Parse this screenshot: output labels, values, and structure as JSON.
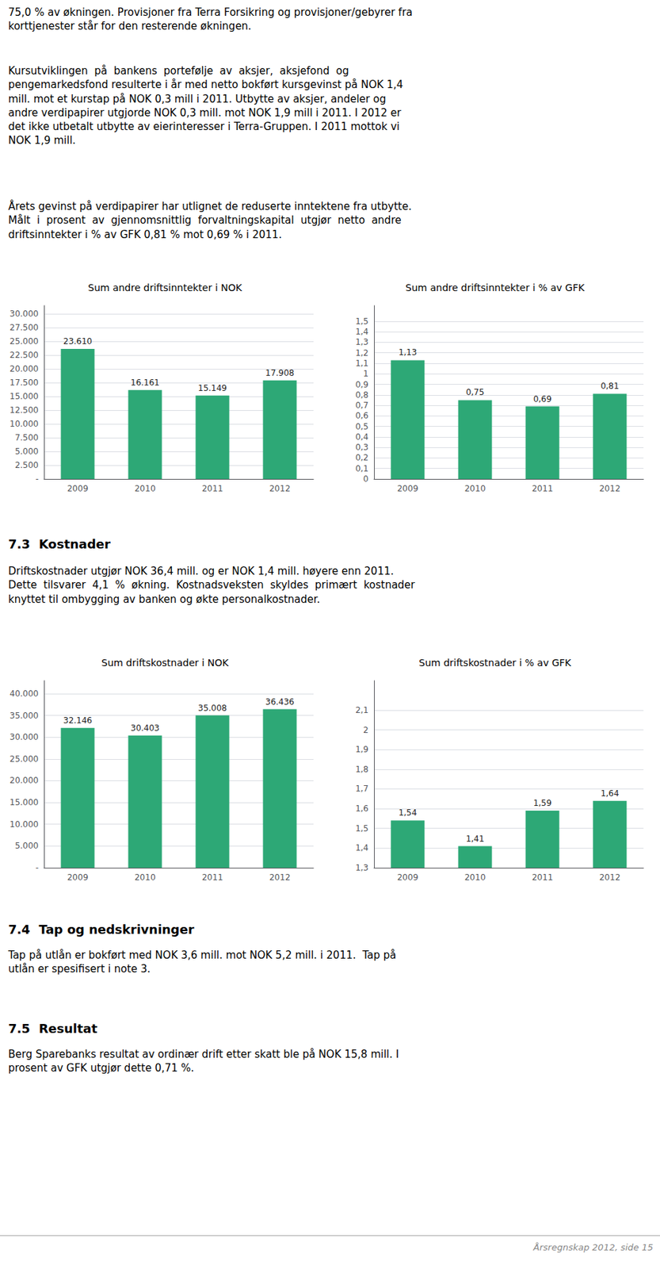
{
  "annotations": [
    "75,0 % av økningen. Provisjoner fra Terra Forsikring og provisjoner/gebyrer fra\nkorttjenester står for den resterende økningen.",
    "Kursutviklingen  på  bankens  portefølje  av  aksjer,  aksjefond  og\npengemarkedsfond resulterte i år med netto bokført kursgevinst på NOK 1,4\nmill. mot et kurstap på NOK 0,3 mill i 2011. Utbytte av aksjer, andeler og\nandre verdipapirer utgjorde NOK 0,3 mill. mot NOK 1,9 mill i 2011. I 2012 er\ndet ikke utbetalt utbytte av eierinteresser i Terra-Gruppen. I 2011 mottok vi\nNOK 1,9 mill.",
    "Årets gevinst på verdipapirer har utlignet de reduserte inntektene fra utbytte.\nMålt  i  prosent  av  gjennomsnittlig  forvaltningskapital  utgjør  netto  andre\ndriftsinntekter i % av GFK 0,81 % mot 0,69 % i 2011."
  ],
  "chart_data": [
    {
      "type": "bar",
      "title": "Sum andre driftsinntekter i NOK",
      "categories": [
        "2009",
        "2010",
        "2011",
        "2012"
      ],
      "values": [
        23610,
        16161,
        15149,
        17908
      ],
      "value_labels": [
        "23.610",
        "16.161",
        "15.149",
        "17.908"
      ],
      "color": "#2da876",
      "ylim": [
        0,
        31500
      ],
      "yticks": [
        {
          "value": 0,
          "label": "-"
        },
        {
          "value": 2500,
          "label": "2.500"
        },
        {
          "value": 5000,
          "label": "5.000"
        },
        {
          "value": 7500,
          "label": "7.500"
        },
        {
          "value": 10000,
          "label": "10.000"
        },
        {
          "value": 12500,
          "label": "12.500"
        },
        {
          "value": 15000,
          "label": "15.000"
        },
        {
          "value": 17500,
          "label": "17.500"
        },
        {
          "value": 20000,
          "label": "20.000"
        },
        {
          "value": 22500,
          "label": "22.500"
        },
        {
          "value": 25000,
          "label": "25.000"
        },
        {
          "value": 27500,
          "label": "27.500"
        },
        {
          "value": 30000,
          "label": "30.000"
        }
      ],
      "grid": true,
      "data_labels": true
    },
    {
      "type": "bar",
      "title": "Sum andre driftsinntekter i % av GFK",
      "categories": [
        "2009",
        "2010",
        "2011",
        "2012"
      ],
      "values": [
        1.13,
        0.75,
        0.69,
        0.81
      ],
      "value_labels": [
        "1,13",
        "0,75",
        "0,69",
        "0,81"
      ],
      "color": "#2da876",
      "ylim": [
        0,
        1.65
      ],
      "yticks": [
        0,
        {
          "value": 0.1,
          "label": "0,1"
        },
        {
          "value": 0.2,
          "label": "0,2"
        },
        {
          "value": 0.3,
          "label": "0,3"
        },
        {
          "value": 0.4,
          "label": "0,4"
        },
        {
          "value": 0.5,
          "label": "0,5"
        },
        {
          "value": 0.6,
          "label": "0,6"
        },
        {
          "value": 0.7,
          "label": "0,7"
        },
        {
          "value": 0.8,
          "label": "0,8"
        },
        {
          "value": 0.9,
          "label": "0,9"
        },
        1,
        {
          "value": 1.1,
          "label": "1,1"
        },
        {
          "value": 1.2,
          "label": "1,2"
        },
        {
          "value": 1.3,
          "label": "1,3"
        },
        {
          "value": 1.4,
          "label": "1,4"
        },
        {
          "value": 1.5,
          "label": "1,5"
        }
      ],
      "grid": true,
      "data_labels": true
    },
    {
      "type": "bar",
      "title": "Sum driftskostnader i NOK",
      "categories": [
        "2009",
        "2010",
        "2011",
        "2012"
      ],
      "values": [
        32146,
        30403,
        35008,
        36436
      ],
      "value_labels": [
        "32.146",
        "30.403",
        "35.008",
        "36.436"
      ],
      "color": "#2da876",
      "ylim": [
        0,
        43000
      ],
      "yticks": [
        {
          "value": 0,
          "label": "-"
        },
        {
          "value": 5000,
          "label": "5.000"
        },
        {
          "value": 10000,
          "label": "10.000"
        },
        {
          "value": 15000,
          "label": "15.000"
        },
        {
          "value": 20000,
          "label": "20.000"
        },
        {
          "value": 25000,
          "label": "25.000"
        },
        {
          "value": 30000,
          "label": "30.000"
        },
        {
          "value": 35000,
          "label": "35.000"
        },
        {
          "value": 40000,
          "label": "40.000"
        }
      ],
      "grid": true,
      "data_labels": true
    },
    {
      "type": "bar",
      "title": "Sum driftskostnader i % av GFK",
      "categories": [
        "2009",
        "2010",
        "2011",
        "2012"
      ],
      "values": [
        1.54,
        1.41,
        1.59,
        1.64
      ],
      "value_labels": [
        "1,54",
        "1,41",
        "1,59",
        "1,64"
      ],
      "color": "#2da876",
      "ylim": [
        1.3,
        2.25
      ],
      "yticks": [
        {
          "value": 1.3,
          "label": "1,3"
        },
        {
          "value": 1.4,
          "label": "1,4"
        },
        {
          "value": 1.5,
          "label": "1,5"
        },
        {
          "value": 1.6,
          "label": "1,6"
        },
        {
          "value": 1.7,
          "label": "1,7"
        },
        {
          "value": 1.8,
          "label": "1,8"
        },
        {
          "value": 1.9,
          "label": "1,9"
        },
        2,
        {
          "value": 2.1,
          "label": "2,1"
        }
      ],
      "grid": true,
      "data_labels": true
    }
  ],
  "sections": [
    {
      "title": "7.3  Kostnader",
      "annotations": [
        "Driftskostnader utgjør NOK 36,4 mill. og er NOK 1,4 mill. høyere enn 2011.\nDette  tilsvarer  4,1  %  økning.  Kostnadsveksten  skyldes  primært  kostnader\nknyttet til ombygging av banken og økte personalkostnader."
      ]
    },
    {
      "title": "7.4  Tap og nedskrivninger",
      "annotations": [
        "Tap på utlån er bokført med NOK 3,6 mill. mot NOK 5,2 mill. i 2011.  Tap på\nutlån er spesifisert i note 3."
      ]
    },
    {
      "title": "7.5  Resultat",
      "annotations": [
        "Berg Sparebanks resultat av ordinær drift etter skatt ble på NOK 15,8 mill. I\nprosent av GFK utgjør dette 0,71 %."
      ]
    }
  ],
  "footer": "Årsregnskap 2012, side 15"
}
